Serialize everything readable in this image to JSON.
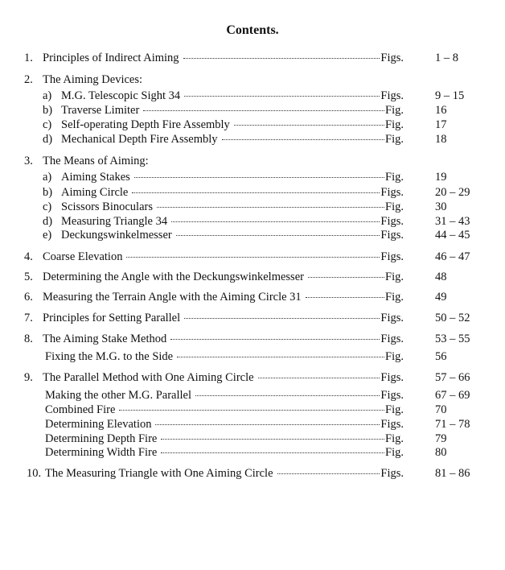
{
  "title": "Contents.",
  "entries": [
    {
      "num": "1.",
      "text": "Principles of Indirect Aiming",
      "label": "Figs.",
      "figs": "1 – 8",
      "level": 0
    },
    {
      "num": "2.",
      "text": "The Aiming Devices:",
      "label": "",
      "figs": "",
      "level": 0
    },
    {
      "num": "a)",
      "text": "M.G. Telescopic Sight 34",
      "label": "Figs.",
      "figs": "9 – 15",
      "level": 1
    },
    {
      "num": "b)",
      "text": "Traverse Limiter",
      "label": "Fig.",
      "figs": "16",
      "level": 1
    },
    {
      "num": "c)",
      "text": "Self-operating Depth Fire Assembly",
      "label": "Fig.",
      "figs": "17",
      "level": 1
    },
    {
      "num": "d)",
      "text": "Mechanical Depth Fire Assembly",
      "label": "Fig.",
      "figs": "18",
      "level": 1
    },
    {
      "num": "3.",
      "text": "The Means of Aiming:",
      "label": "",
      "figs": "",
      "level": 0
    },
    {
      "num": "a)",
      "text": "Aiming Stakes",
      "label": "Fig.",
      "figs": "19",
      "level": 1
    },
    {
      "num": "b)",
      "text": "Aiming Circle",
      "label": "Figs.",
      "figs": "20 – 29",
      "level": 1
    },
    {
      "num": "c)",
      "text": "Scissors Binoculars",
      "label": "Fig.",
      "figs": "30",
      "level": 1
    },
    {
      "num": "d)",
      "text": "Measuring Triangle 34",
      "label": "Figs.",
      "figs": "31 – 43",
      "level": 1
    },
    {
      "num": "e)",
      "text": "Deckungswinkelmesser",
      "label": "Figs.",
      "figs": "44 – 45",
      "level": 1
    },
    {
      "num": "4.",
      "text": "Coarse Elevation",
      "label": "Figs.",
      "figs": "46 – 47",
      "level": 0
    },
    {
      "num": "5.",
      "text": "Determining the Angle with the Deckungswinkelmesser",
      "label": "Fig.",
      "figs": "48",
      "level": 0
    },
    {
      "num": "6.",
      "text": "Measuring the Terrain Angle with the Aiming Circle 31",
      "label": "Fig.",
      "figs": "49",
      "level": 0
    },
    {
      "num": "7.",
      "text": "Principles for Setting Parallel",
      "label": "Figs.",
      "figs": "50 – 52",
      "level": 0
    },
    {
      "num": "8.",
      "text": "The Aiming Stake Method",
      "label": "Figs.",
      "figs": "53 – 55",
      "level": 0
    },
    {
      "num": "",
      "text": "Fixing the M.G. to the Side",
      "label": "Fig.",
      "figs": "56",
      "level": 2
    },
    {
      "num": "9.",
      "text": "The Parallel Method with One Aiming Circle",
      "label": "Figs.",
      "figs": "57 – 66",
      "level": 0
    },
    {
      "num": "",
      "text": "Making the other M.G. Parallel",
      "label": "Figs.",
      "figs": "67 – 69",
      "level": 2
    },
    {
      "num": "",
      "text": "Combined Fire",
      "label": "Fig.",
      "figs": "70",
      "level": 2
    },
    {
      "num": "",
      "text": "Determining Elevation",
      "label": "Figs.",
      "figs": "71 – 78",
      "level": 2
    },
    {
      "num": "",
      "text": "Determining Depth Fire",
      "label": "Fig.",
      "figs": "79",
      "level": 2
    },
    {
      "num": "",
      "text": "Determining Width Fire",
      "label": "Fig.",
      "figs": "80",
      "level": 2
    },
    {
      "num": "10.",
      "text": "The Measuring Triangle with One Aiming Circle",
      "label": "Figs.",
      "figs": "81 – 86",
      "level": 0
    }
  ]
}
